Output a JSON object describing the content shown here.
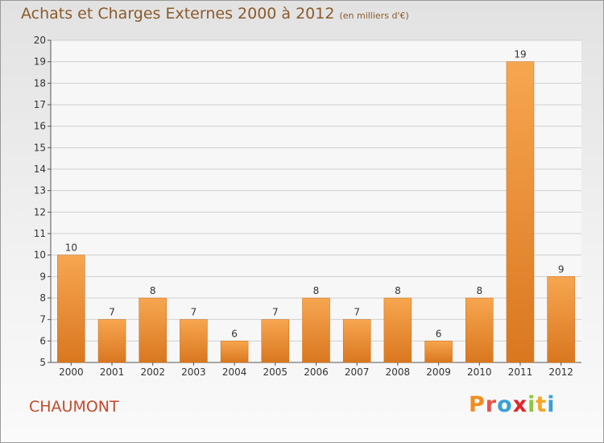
{
  "header": {
    "title": "Achats et Charges Externes 2000 à 2012",
    "subtitle": "(en milliers d'€)"
  },
  "footer": {
    "town": "CHAUMONT",
    "logo": [
      "P",
      "r",
      "o",
      "x",
      "i",
      "t",
      "i"
    ]
  },
  "colors": {
    "bar_light": "#f7a650",
    "bar_dark": "#d9771f",
    "title": "#8a5a2a",
    "town": "#c44a2c",
    "logo": [
      "#f28c1e",
      "#e8524a",
      "#3aa0d8",
      "#e2252b",
      "#8dc63f",
      "#f5a623",
      "#3aa0d8"
    ]
  },
  "chart_data": {
    "type": "bar",
    "title": "Achats et Charges Externes 2000 à 2012",
    "subtitle": "(en milliers d'€)",
    "categories": [
      "2000",
      "2001",
      "2002",
      "2003",
      "2004",
      "2005",
      "2006",
      "2007",
      "2008",
      "2009",
      "2010",
      "2011",
      "2012"
    ],
    "values": [
      10,
      7,
      8,
      7,
      6,
      7,
      8,
      7,
      8,
      6,
      8,
      19,
      9
    ],
    "ylim": [
      5,
      20
    ],
    "yticks": [
      5,
      6,
      7,
      8,
      9,
      10,
      11,
      12,
      13,
      14,
      15,
      16,
      17,
      18,
      19,
      20
    ],
    "grid": true
  }
}
